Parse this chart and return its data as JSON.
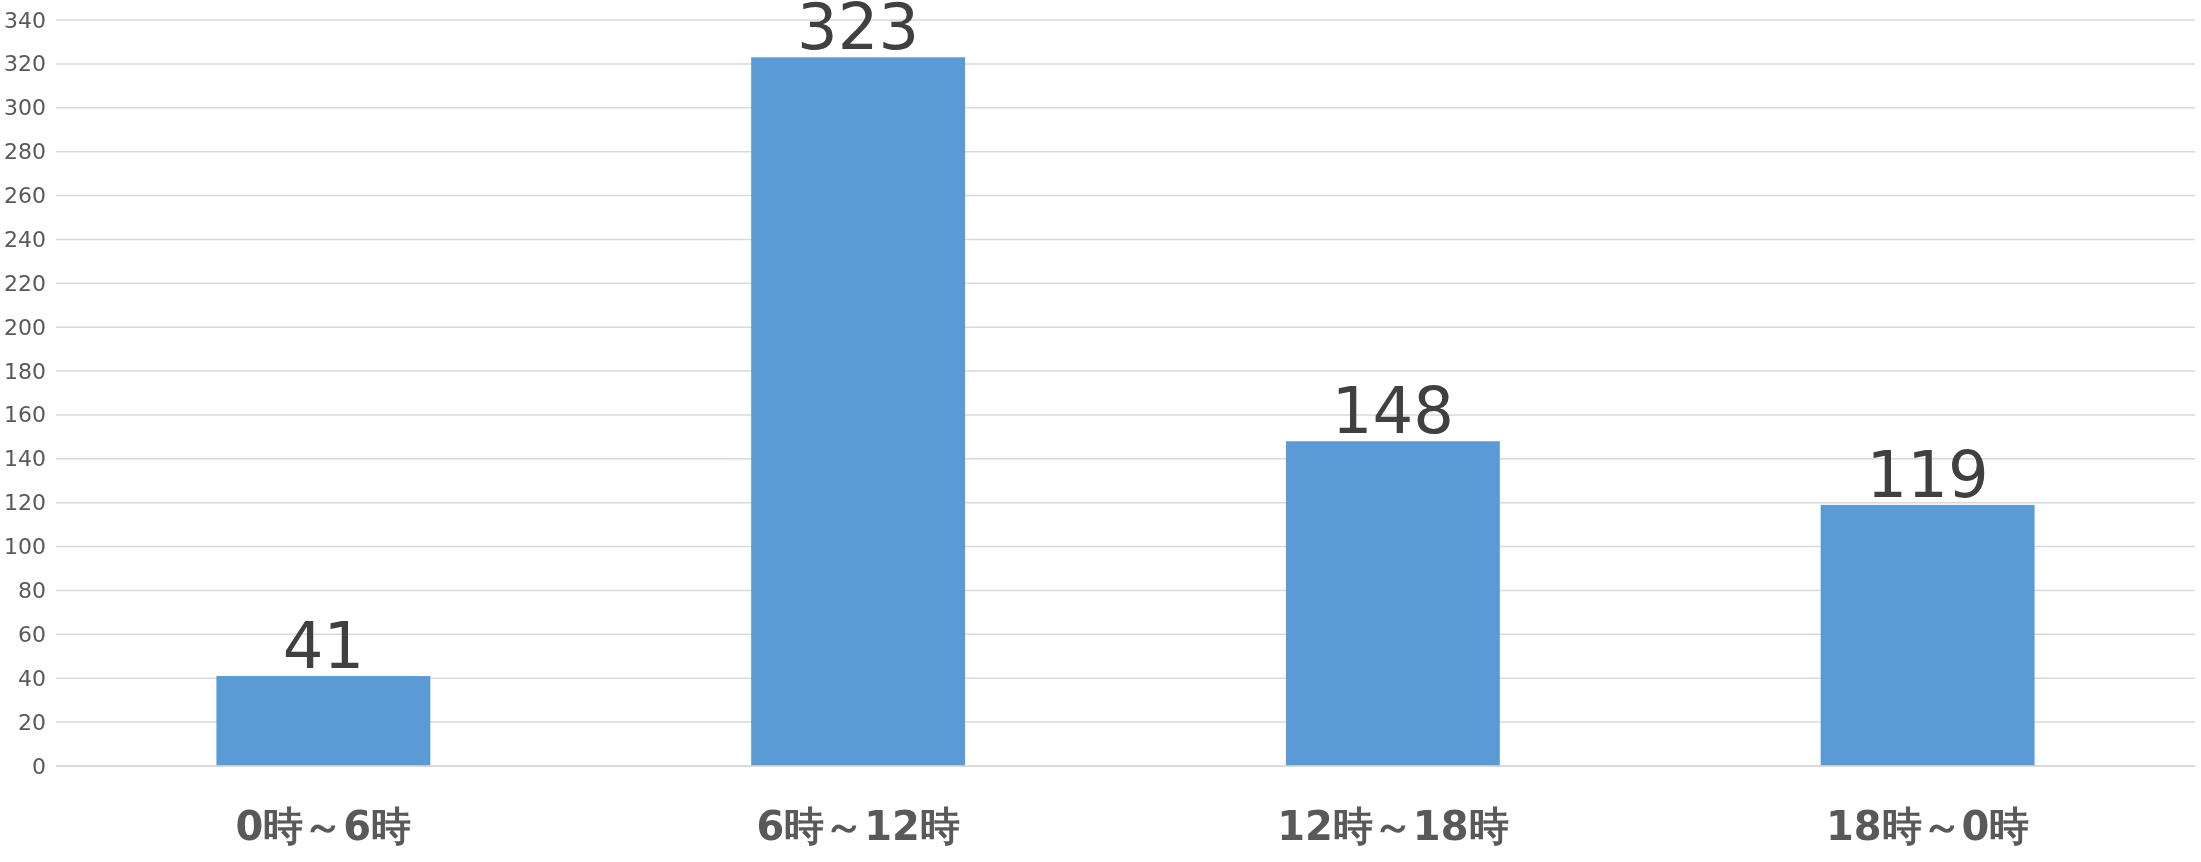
{
  "chart_data": {
    "type": "bar",
    "categories": [
      "0時～6時",
      "6時～12時",
      "12時～18時",
      "18時～0時"
    ],
    "values": [
      41,
      323,
      148,
      119
    ],
    "color": "#5b9bd5",
    "ylim": [
      0,
      340
    ],
    "yticks": [
      0,
      20,
      40,
      60,
      80,
      100,
      120,
      140,
      160,
      180,
      200,
      220,
      240,
      260,
      280,
      300,
      320,
      340
    ],
    "grid": "y",
    "data_labels": true
  }
}
